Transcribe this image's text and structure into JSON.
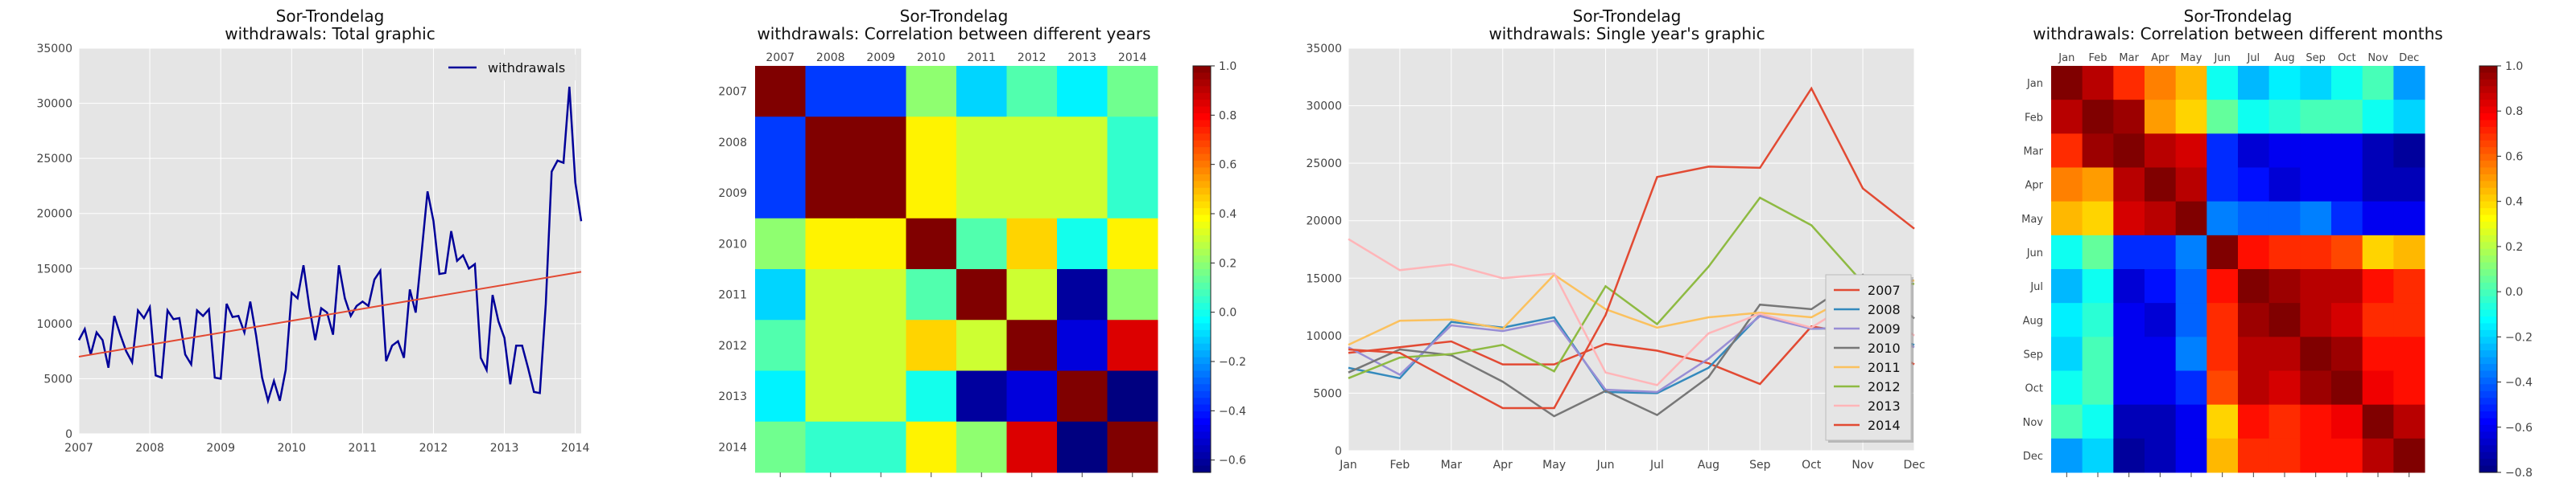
{
  "colors": {
    "panel_bg": "#e5e5e5",
    "grid": "#ffffff",
    "trend": "#e24a33",
    "withdrawals_line": "#000099"
  },
  "chart_data": [
    {
      "type": "line",
      "title": "Sor-Trondelag",
      "subtitle": "withdrawals: Total graphic",
      "x_ticks": [
        "2007",
        "2008",
        "2009",
        "2010",
        "2011",
        "2012",
        "2013",
        "2014"
      ],
      "ylim": [
        0,
        35000
      ],
      "y_ticks": [
        "0",
        "5000",
        "10000",
        "15000",
        "20000",
        "25000",
        "30000",
        "35000"
      ],
      "legend": "top-right",
      "series": [
        {
          "name": "withdrawals",
          "color": "#000099",
          "values": [
            8500,
            9500,
            7200,
            9200,
            8500,
            6000,
            10700,
            9000,
            7500,
            6500,
            11200,
            10500,
            11500,
            5300,
            5100,
            11200,
            10400,
            10500,
            7200,
            6300,
            11200,
            10700,
            11300,
            5100,
            5000,
            11800,
            10600,
            10700,
            9200,
            12000,
            8900,
            5100,
            3000,
            4800,
            3000,
            5800,
            12800,
            12300,
            15300,
            11500,
            8500,
            11400,
            11000,
            9000,
            15300,
            12300,
            10700,
            11600,
            12000,
            11600,
            14000,
            14800,
            6600,
            8000,
            8400,
            6900,
            13100,
            11000,
            16500,
            22000,
            19300,
            14500,
            14600,
            18400,
            15700,
            16200,
            15000,
            15400,
            6900,
            5800,
            12600,
            10200,
            8700,
            4500,
            8000,
            8000,
            6000,
            3800,
            3700,
            11800,
            23800,
            24800,
            24600,
            31500,
            22800,
            19300
          ]
        },
        {
          "name": "trend",
          "color": "#e24a33",
          "values": [
            7000,
            14700
          ]
        }
      ]
    },
    {
      "type": "heatmap",
      "title": "Sor-Trondelag",
      "subtitle": "withdrawals: Correlation between different years",
      "labels": [
        "2007",
        "2008",
        "2009",
        "2010",
        "2011",
        "2012",
        "2013",
        "2014"
      ],
      "colorbar_ticks": [
        "1.0",
        "0.8",
        "0.6",
        "0.4",
        "0.2",
        "0.0",
        "−0.2",
        "−0.4",
        "−0.6"
      ],
      "vmin": -0.65,
      "vmax": 1.0,
      "matrix": [
        [
          1.0,
          -0.35,
          -0.35,
          0.2,
          -0.1,
          0.1,
          -0.05,
          0.15
        ],
        [
          -0.35,
          1.0,
          1.0,
          0.4,
          0.3,
          0.3,
          0.3,
          0.05
        ],
        [
          -0.35,
          1.0,
          1.0,
          0.4,
          0.3,
          0.3,
          0.3,
          0.05
        ],
        [
          0.2,
          0.4,
          0.4,
          1.0,
          0.1,
          0.45,
          0.0,
          0.4
        ],
        [
          -0.1,
          0.3,
          0.3,
          0.1,
          1.0,
          0.3,
          -0.6,
          0.2
        ],
        [
          0.1,
          0.3,
          0.3,
          0.45,
          0.3,
          1.0,
          -0.5,
          0.85
        ],
        [
          -0.05,
          0.3,
          0.3,
          0.0,
          -0.6,
          -0.5,
          1.0,
          -0.65
        ],
        [
          0.15,
          0.05,
          0.05,
          0.4,
          0.2,
          0.85,
          -0.65,
          1.0
        ]
      ]
    },
    {
      "type": "line",
      "title": "Sor-Trondelag",
      "subtitle": "withdrawals: Single year's graphic",
      "categories": [
        "Jan",
        "Feb",
        "Mar",
        "Apr",
        "May",
        "Jun",
        "Jul",
        "Aug",
        "Sep",
        "Oct",
        "Nov",
        "Dec"
      ],
      "ylim": [
        0,
        35000
      ],
      "y_ticks": [
        "0",
        "5000",
        "10000",
        "15000",
        "20000",
        "25000",
        "30000",
        "35000"
      ],
      "legend": "bottom-right",
      "series": [
        {
          "name": "2007",
          "color": "#e24a33",
          "values": [
            8500,
            9000,
            9500,
            7500,
            7500,
            9300,
            8700,
            7600,
            5800,
            10800,
            10100,
            7500
          ]
        },
        {
          "name": "2008",
          "color": "#348abd",
          "values": [
            7200,
            6300,
            11200,
            10700,
            11600,
            5100,
            5000,
            7200,
            11800,
            10600,
            10700,
            9200
          ]
        },
        {
          "name": "2009",
          "color": "#988ed5",
          "values": [
            9000,
            6600,
            10900,
            10400,
            11300,
            5300,
            5100,
            8000,
            11700,
            10600,
            10700,
            9000
          ]
        },
        {
          "name": "2010",
          "color": "#777777",
          "values": [
            6800,
            8800,
            8300,
            6000,
            3000,
            5200,
            3100,
            6400,
            12700,
            12300,
            15300,
            11500
          ]
        },
        {
          "name": "2011",
          "color": "#fbc15e",
          "values": [
            9200,
            11300,
            11400,
            10600,
            15300,
            12300,
            10700,
            11600,
            12000,
            11600,
            14000,
            14800
          ]
        },
        {
          "name": "2012",
          "color": "#8eba42",
          "values": [
            6300,
            8100,
            8400,
            9200,
            6900,
            14300,
            11000,
            16000,
            22000,
            19600,
            14600,
            14500
          ]
        },
        {
          "name": "2013",
          "color": "#ffb5b8",
          "values": [
            18400,
            15700,
            16200,
            15000,
            15400,
            6800,
            5700,
            10200,
            11900,
            10700,
            13500,
            10000
          ]
        },
        {
          "name": "2014",
          "color": "#e24a33",
          "values": [
            8800,
            8500,
            6100,
            3700,
            3700,
            11800,
            23800,
            24700,
            24600,
            31500,
            22800,
            19300
          ]
        }
      ]
    },
    {
      "type": "heatmap",
      "title": "Sor-Trondelag",
      "subtitle": "withdrawals: Correlation between different months",
      "labels": [
        "Jan",
        "Feb",
        "Mar",
        "Apr",
        "May",
        "Jun",
        "Jul",
        "Aug",
        "Sep",
        "Oct",
        "Nov",
        "Dec"
      ],
      "colorbar_ticks": [
        "1.0",
        "0.8",
        "0.6",
        "0.4",
        "0.2",
        "0.0",
        "−0.2",
        "−0.4",
        "−0.6",
        "−0.8"
      ],
      "vmin": -0.8,
      "vmax": 1.0,
      "matrix": [
        [
          1.0,
          0.9,
          0.7,
          0.55,
          0.45,
          -0.1,
          -0.25,
          -0.15,
          -0.2,
          -0.1,
          0.0,
          -0.3
        ],
        [
          0.9,
          1.0,
          0.95,
          0.5,
          0.4,
          0.05,
          -0.1,
          -0.05,
          0.0,
          0.0,
          -0.1,
          -0.2
        ],
        [
          0.7,
          0.95,
          1.0,
          0.9,
          0.85,
          -0.5,
          -0.65,
          -0.6,
          -0.6,
          -0.6,
          -0.7,
          -0.75
        ],
        [
          0.55,
          0.5,
          0.9,
          1.0,
          0.9,
          -0.5,
          -0.55,
          -0.65,
          -0.6,
          -0.6,
          -0.7,
          -0.7
        ],
        [
          0.45,
          0.4,
          0.85,
          0.9,
          1.0,
          -0.35,
          -0.4,
          -0.4,
          -0.35,
          -0.5,
          -0.6,
          -0.6
        ],
        [
          -0.1,
          0.05,
          -0.5,
          -0.5,
          -0.35,
          1.0,
          0.75,
          0.7,
          0.7,
          0.65,
          0.4,
          0.45
        ],
        [
          -0.25,
          -0.1,
          -0.65,
          -0.55,
          -0.4,
          0.75,
          1.0,
          0.95,
          0.9,
          0.9,
          0.75,
          0.7
        ],
        [
          -0.15,
          -0.05,
          -0.6,
          -0.65,
          -0.4,
          0.7,
          0.95,
          1.0,
          0.9,
          0.85,
          0.7,
          0.7
        ],
        [
          -0.2,
          0.0,
          -0.6,
          -0.6,
          -0.35,
          0.7,
          0.9,
          0.9,
          1.0,
          0.95,
          0.75,
          0.75
        ],
        [
          -0.1,
          0.0,
          -0.6,
          -0.6,
          -0.5,
          0.65,
          0.9,
          0.85,
          0.95,
          1.0,
          0.8,
          0.75
        ],
        [
          0.0,
          -0.1,
          -0.7,
          -0.7,
          -0.6,
          0.4,
          0.75,
          0.7,
          0.75,
          0.8,
          1.0,
          0.9
        ],
        [
          -0.3,
          -0.2,
          -0.75,
          -0.7,
          -0.6,
          0.45,
          0.7,
          0.7,
          0.75,
          0.75,
          0.9,
          1.0
        ]
      ]
    }
  ]
}
